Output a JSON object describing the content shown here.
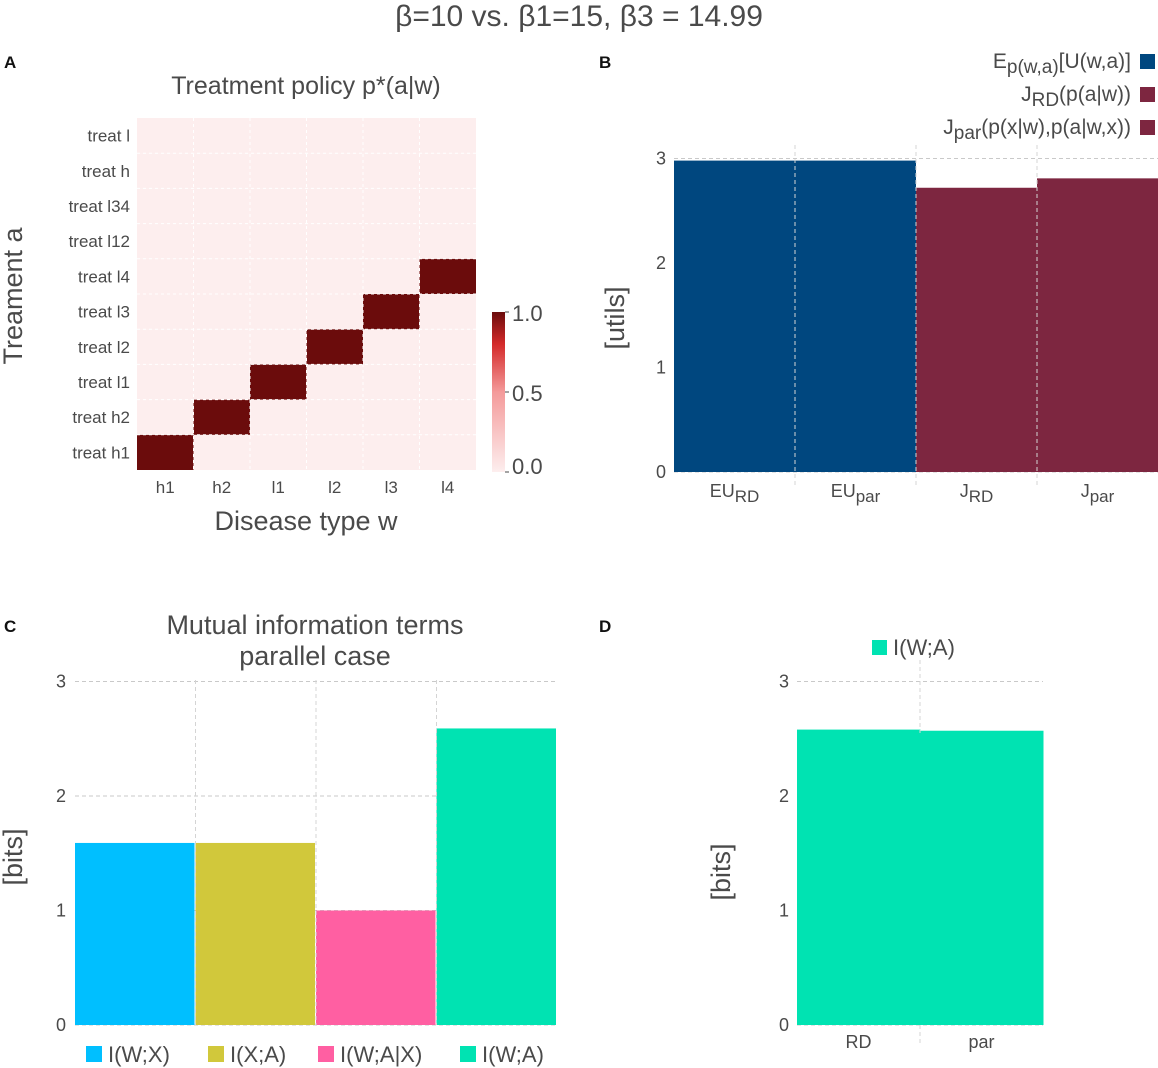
{
  "figure_title": "β=10 vs. β1=15, β3 = 14.99",
  "colors": {
    "text": "#4a4a4a",
    "grid": "#c9c9c9",
    "blue": "#00477f",
    "maroon": "#7d2640",
    "heat_low": "#fdeeee",
    "heat_high": "#6b0c0c",
    "cyan": "#00bfff",
    "olive": "#d1c83b",
    "pink": "#ff5fa2",
    "teal": "#00e3b2"
  },
  "chart_data": [
    {
      "panel": "A",
      "type": "heatmap",
      "title": "Treatment policy p*(a|w)",
      "xlabel": "Disease type w",
      "ylabel": "Treament a",
      "x_categories": [
        "h1",
        "h2",
        "l1",
        "l2",
        "l3",
        "l4"
      ],
      "y_categories": [
        "treat h1",
        "treat h2",
        "treat l1",
        "treat l2",
        "treat l3",
        "treat l4",
        "treat l12",
        "treat l34",
        "treat h",
        "treat l"
      ],
      "values": [
        [
          1,
          0,
          0,
          0,
          0,
          0
        ],
        [
          0,
          1,
          0,
          0,
          0,
          0
        ],
        [
          0,
          0,
          1,
          0,
          0,
          0
        ],
        [
          0,
          0,
          0,
          1,
          0,
          0
        ],
        [
          0,
          0,
          0,
          0,
          1,
          0
        ],
        [
          0,
          0,
          0,
          0,
          0,
          1
        ],
        [
          0,
          0,
          0,
          0,
          0,
          0
        ],
        [
          0,
          0,
          0,
          0,
          0,
          0
        ],
        [
          0,
          0,
          0,
          0,
          0,
          0
        ],
        [
          0,
          0,
          0,
          0,
          0,
          0
        ]
      ],
      "colorbar": {
        "min": 0.0,
        "max": 1.0,
        "tick_labels": [
          "0.0",
          "0.5",
          "1.0"
        ]
      }
    },
    {
      "panel": "B",
      "type": "bar",
      "ylabel": "[utils]",
      "ylim": [
        0,
        3
      ],
      "yticks": [
        "0",
        "1",
        "2",
        "3"
      ],
      "categories": [
        {
          "base": "EU",
          "sub": "RD",
          "value": 2.98,
          "series": 0
        },
        {
          "base": "EU",
          "sub": "par",
          "value": 2.98,
          "series": 0
        },
        {
          "base": "J",
          "sub": "RD",
          "value": 2.72,
          "series": 1
        },
        {
          "base": "J",
          "sub": "par",
          "value": 2.81,
          "series": 2
        }
      ],
      "legend": [
        {
          "base": "E",
          "sub": "p(w,a)",
          "rest": "[U(w,a)]",
          "color": "#00477f"
        },
        {
          "base": "J",
          "sub": "RD",
          "rest": "(p(a|w))",
          "color": "#7d2640"
        },
        {
          "base": "J",
          "sub": "par",
          "rest": "(p(x|w),p(a|w,x))",
          "color": "#7d2640"
        }
      ],
      "legend_position": "top-right"
    },
    {
      "panel": "C",
      "type": "bar",
      "title": "Mutual information terms",
      "subtitle": "parallel case",
      "ylabel": "[bits]",
      "ylim": [
        0,
        3
      ],
      "yticks": [
        "0",
        "1",
        "2",
        "3"
      ],
      "categories": [
        "I(W;X)",
        "I(X;A)",
        "I(W;A|X)",
        "I(W;A)"
      ],
      "values": [
        1.59,
        1.59,
        1.0,
        2.59
      ],
      "colors": [
        "#00bfff",
        "#d1c83b",
        "#ff5fa2",
        "#00e3b2"
      ],
      "legend_position": "bottom"
    },
    {
      "panel": "D",
      "type": "bar",
      "ylabel": "[bits]",
      "ylim": [
        0,
        3
      ],
      "yticks": [
        "0",
        "1",
        "2",
        "3"
      ],
      "categories": [
        "RD",
        "par"
      ],
      "values": [
        2.58,
        2.57
      ],
      "legend": [
        {
          "label": "I(W;A)",
          "color": "#00e3b2"
        }
      ],
      "legend_position": "top"
    }
  ]
}
